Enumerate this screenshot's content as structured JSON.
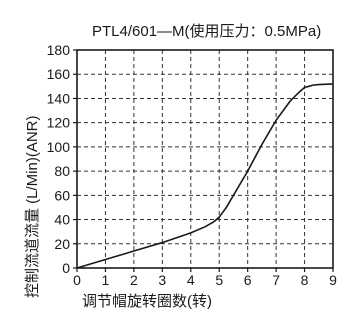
{
  "chart_data": {
    "type": "line",
    "title": "PTL4/601—M(使用压力：0.5MPa)",
    "xlabel": "调节帽旋转圈数(转)",
    "ylabel": "控制流道流量 (L/Min)(ANR)",
    "xlim": [
      0,
      9
    ],
    "ylim": [
      0,
      180
    ],
    "x_ticks": [
      0,
      1,
      2,
      3,
      4,
      5,
      6,
      7,
      8,
      9
    ],
    "y_ticks": [
      0,
      20,
      40,
      60,
      80,
      100,
      120,
      140,
      160,
      180
    ],
    "grid": true,
    "grid_style": "dashed",
    "series": [
      {
        "x": [
          0,
          1,
          2,
          3,
          4,
          4.5,
          4.8,
          5.0,
          5.25,
          5.5,
          6.0,
          6.5,
          7.0,
          7.5,
          7.8,
          8.0,
          8.15,
          8.3,
          8.5,
          9.0
        ],
        "y": [
          0,
          7,
          14,
          21,
          29,
          34,
          38,
          42,
          50,
          60,
          80,
          102,
          122,
          138,
          145,
          149,
          150,
          151,
          151.5,
          152
        ]
      }
    ],
    "colors": {
      "line": "#1a1a1a",
      "axis": "#1a1a1a",
      "grid": "#333333"
    }
  }
}
